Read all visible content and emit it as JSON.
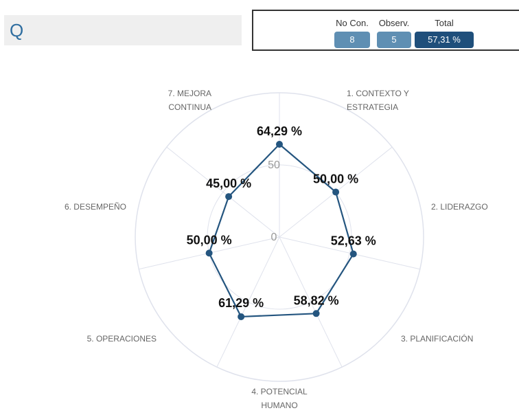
{
  "search": {
    "label": "Q"
  },
  "stats": {
    "no_con": {
      "label": "No Con.",
      "value": "8"
    },
    "observ": {
      "label": "Observ.",
      "value": "5"
    },
    "total": {
      "label": "Total",
      "value": "57,31 %"
    }
  },
  "colors": {
    "series": "#24557f",
    "grid": "#dfe2ec",
    "badge_light": "#5f8fb3",
    "badge_dark": "#1f4f7b"
  },
  "chart_data": {
    "type": "radar",
    "categories": [
      [
        "1. CONTEXTO Y",
        "ESTRATEGIA"
      ],
      [
        "2. LIDERAZGO"
      ],
      [
        "3. PLANIFICACIÓN"
      ],
      [
        "4. POTENCIAL",
        "HUMANO"
      ],
      [
        "5. OPERACIONES"
      ],
      [
        "6. DESEMPEÑO"
      ],
      [
        "7. MEJORA",
        "CONTINUA"
      ]
    ],
    "values": [
      64.29,
      50.0,
      52.63,
      58.82,
      61.29,
      50.0,
      45.0
    ],
    "value_labels": [
      "64,29 %",
      "50,00 %",
      "52,63 %",
      "58,82 %",
      "61,29 %",
      "50,00 %",
      "45,00 %"
    ],
    "radial_ticks": [
      0,
      50
    ],
    "range": [
      0,
      100
    ]
  }
}
